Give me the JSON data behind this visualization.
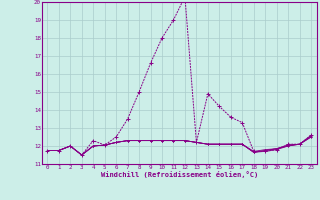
{
  "xlabel": "Windchill (Refroidissement éolien,°C)",
  "bg_color": "#cceee8",
  "grid_color": "#aacccc",
  "line_color": "#880088",
  "xmin": 0,
  "xmax": 23,
  "ymin": 11,
  "ymax": 20,
  "series": [
    [
      11.75,
      11.75,
      12.0,
      11.5,
      12.3,
      12.05,
      12.5,
      13.5,
      15.0,
      16.6,
      18.0,
      19.0,
      20.3,
      12.2,
      14.9,
      14.2,
      13.6,
      13.3,
      11.7,
      11.7,
      11.8,
      12.1,
      12.1,
      12.6
    ],
    [
      11.75,
      11.75,
      12.0,
      11.5,
      12.0,
      12.05,
      12.2,
      12.3,
      12.3,
      12.3,
      12.3,
      12.3,
      12.3,
      12.2,
      12.1,
      12.1,
      12.1,
      12.1,
      11.7,
      11.8,
      11.85,
      12.0,
      12.1,
      12.6
    ],
    [
      11.75,
      11.75,
      12.0,
      11.5,
      12.0,
      12.05,
      12.2,
      12.3,
      12.3,
      12.3,
      12.3,
      12.3,
      12.3,
      12.2,
      12.1,
      12.1,
      12.1,
      12.1,
      11.65,
      11.75,
      11.85,
      12.05,
      12.1,
      12.55
    ],
    [
      11.75,
      11.75,
      12.0,
      11.5,
      12.0,
      12.05,
      12.2,
      12.3,
      12.3,
      12.3,
      12.3,
      12.3,
      12.3,
      12.2,
      12.1,
      12.1,
      12.1,
      12.1,
      11.65,
      11.75,
      11.85,
      12.05,
      12.1,
      12.5
    ],
    [
      11.75,
      11.75,
      12.0,
      11.5,
      12.0,
      12.05,
      12.2,
      12.3,
      12.3,
      12.3,
      12.3,
      12.3,
      12.3,
      12.2,
      12.1,
      12.1,
      12.1,
      12.1,
      11.65,
      11.7,
      11.8,
      12.0,
      12.1,
      12.5
    ]
  ],
  "xtick_labels": [
    "0",
    "1",
    "2",
    "3",
    "4",
    "5",
    "6",
    "7",
    "8",
    "9",
    "10",
    "11",
    "12",
    "13",
    "14",
    "15",
    "16",
    "17",
    "18",
    "19",
    "20",
    "21",
    "22",
    "23"
  ],
  "ytick_labels": [
    "11",
    "12",
    "13",
    "14",
    "15",
    "16",
    "17",
    "18",
    "19",
    "20"
  ]
}
